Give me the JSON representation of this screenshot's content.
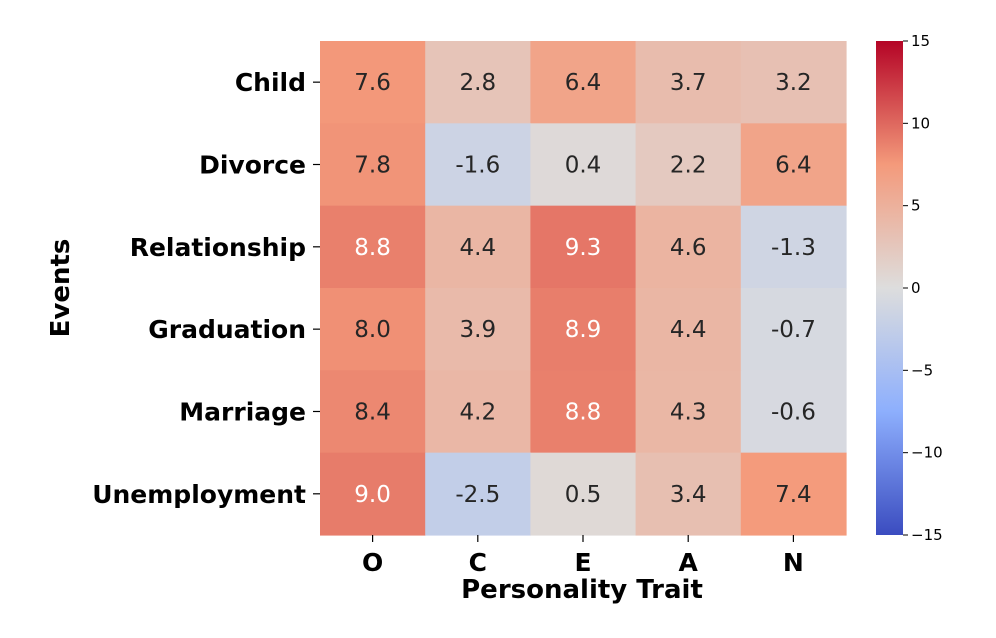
{
  "chart_data": {
    "type": "heatmap",
    "title": "",
    "xlabel": "Personality Trait",
    "ylabel": "Events",
    "x_categories": [
      "O",
      "C",
      "E",
      "A",
      "N"
    ],
    "y_categories": [
      "Child",
      "Divorce",
      "Relationship",
      "Graduation",
      "Marriage",
      "Unemployment"
    ],
    "values": [
      [
        7.6,
        2.8,
        6.4,
        3.7,
        3.2
      ],
      [
        7.8,
        -1.6,
        0.4,
        2.2,
        6.4
      ],
      [
        8.8,
        4.4,
        9.3,
        4.6,
        -1.3
      ],
      [
        8.0,
        3.9,
        8.9,
        4.4,
        -0.7
      ],
      [
        8.4,
        4.2,
        8.8,
        4.3,
        -0.6
      ],
      [
        9.0,
        -2.5,
        0.5,
        3.4,
        7.4
      ]
    ],
    "value_format": "one_decimal",
    "colormap": "coolwarm",
    "vmin": -15,
    "vmax": 15,
    "colorbar_ticks": [
      15,
      10,
      5,
      0,
      -5,
      -10,
      -15
    ],
    "colorbar_tick_labels": [
      "15",
      "10",
      "5",
      "0",
      "−5",
      "−10",
      "−15"
    ]
  }
}
